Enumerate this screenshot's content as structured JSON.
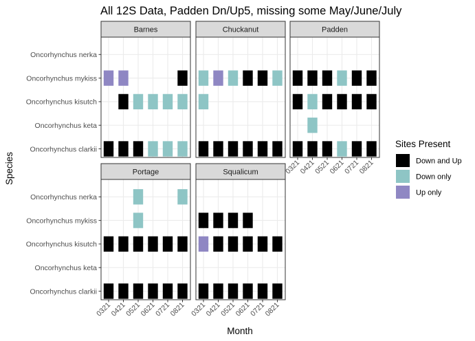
{
  "chart_data": {
    "type": "heatmap",
    "title": "All 12S Data, Padden Dn/Up5, missing some May/June/July",
    "xlabel": "Month",
    "ylabel": "Species",
    "x_categories": [
      "0321",
      "0421",
      "0521",
      "0621",
      "0721",
      "0821"
    ],
    "y_categories": [
      "Oncorhynchus clarkii",
      "Oncorhynchus keta",
      "Oncorhynchus kisutch",
      "Oncorhynchus mykiss",
      "Oncorhynchus nerka"
    ],
    "legend": {
      "title": "Sites Present",
      "placement": "right",
      "entries": [
        {
          "key": "Down and Up",
          "label": "Down and Up",
          "color": "#000000"
        },
        {
          "key": "Down only",
          "label": "Down only",
          "color": "#8ec5c5"
        },
        {
          "key": "Up only",
          "label": "Up only",
          "color": "#8f87c3"
        }
      ]
    },
    "grid": true,
    "facets": [
      {
        "name": "Barnes",
        "cells": [
          {
            "species": "Oncorhynchus mykiss",
            "month": "0321",
            "value": "Up only"
          },
          {
            "species": "Oncorhynchus mykiss",
            "month": "0421",
            "value": "Up only"
          },
          {
            "species": "Oncorhynchus mykiss",
            "month": "0821",
            "value": "Down and Up"
          },
          {
            "species": "Oncorhynchus kisutch",
            "month": "0421",
            "value": "Down and Up"
          },
          {
            "species": "Oncorhynchus kisutch",
            "month": "0521",
            "value": "Down only"
          },
          {
            "species": "Oncorhynchus kisutch",
            "month": "0621",
            "value": "Down only"
          },
          {
            "species": "Oncorhynchus kisutch",
            "month": "0721",
            "value": "Down only"
          },
          {
            "species": "Oncorhynchus kisutch",
            "month": "0821",
            "value": "Down only"
          },
          {
            "species": "Oncorhynchus clarkii",
            "month": "0321",
            "value": "Down and Up"
          },
          {
            "species": "Oncorhynchus clarkii",
            "month": "0421",
            "value": "Down and Up"
          },
          {
            "species": "Oncorhynchus clarkii",
            "month": "0521",
            "value": "Down and Up"
          },
          {
            "species": "Oncorhynchus clarkii",
            "month": "0621",
            "value": "Down only"
          },
          {
            "species": "Oncorhynchus clarkii",
            "month": "0721",
            "value": "Down only"
          },
          {
            "species": "Oncorhynchus clarkii",
            "month": "0821",
            "value": "Down only"
          }
        ]
      },
      {
        "name": "Chuckanut",
        "cells": [
          {
            "species": "Oncorhynchus mykiss",
            "month": "0321",
            "value": "Down only"
          },
          {
            "species": "Oncorhynchus mykiss",
            "month": "0421",
            "value": "Up only"
          },
          {
            "species": "Oncorhynchus mykiss",
            "month": "0521",
            "value": "Down only"
          },
          {
            "species": "Oncorhynchus mykiss",
            "month": "0621",
            "value": "Down and Up"
          },
          {
            "species": "Oncorhynchus mykiss",
            "month": "0721",
            "value": "Down and Up"
          },
          {
            "species": "Oncorhynchus mykiss",
            "month": "0821",
            "value": "Down only"
          },
          {
            "species": "Oncorhynchus kisutch",
            "month": "0321",
            "value": "Down only"
          },
          {
            "species": "Oncorhynchus clarkii",
            "month": "0321",
            "value": "Down and Up"
          },
          {
            "species": "Oncorhynchus clarkii",
            "month": "0421",
            "value": "Down and Up"
          },
          {
            "species": "Oncorhynchus clarkii",
            "month": "0521",
            "value": "Down and Up"
          },
          {
            "species": "Oncorhynchus clarkii",
            "month": "0621",
            "value": "Down and Up"
          },
          {
            "species": "Oncorhynchus clarkii",
            "month": "0721",
            "value": "Down and Up"
          },
          {
            "species": "Oncorhynchus clarkii",
            "month": "0821",
            "value": "Down and Up"
          }
        ]
      },
      {
        "name": "Padden",
        "cells": [
          {
            "species": "Oncorhynchus mykiss",
            "month": "0321",
            "value": "Down and Up"
          },
          {
            "species": "Oncorhynchus mykiss",
            "month": "0421",
            "value": "Down and Up"
          },
          {
            "species": "Oncorhynchus mykiss",
            "month": "0521",
            "value": "Down and Up"
          },
          {
            "species": "Oncorhynchus mykiss",
            "month": "0621",
            "value": "Down only"
          },
          {
            "species": "Oncorhynchus mykiss",
            "month": "0721",
            "value": "Down and Up"
          },
          {
            "species": "Oncorhynchus mykiss",
            "month": "0821",
            "value": "Down and Up"
          },
          {
            "species": "Oncorhynchus kisutch",
            "month": "0321",
            "value": "Down and Up"
          },
          {
            "species": "Oncorhynchus kisutch",
            "month": "0421",
            "value": "Down only"
          },
          {
            "species": "Oncorhynchus kisutch",
            "month": "0521",
            "value": "Down and Up"
          },
          {
            "species": "Oncorhynchus kisutch",
            "month": "0621",
            "value": "Down and Up"
          },
          {
            "species": "Oncorhynchus kisutch",
            "month": "0721",
            "value": "Down and Up"
          },
          {
            "species": "Oncorhynchus kisutch",
            "month": "0821",
            "value": "Down and Up"
          },
          {
            "species": "Oncorhynchus keta",
            "month": "0421",
            "value": "Down only"
          },
          {
            "species": "Oncorhynchus clarkii",
            "month": "0321",
            "value": "Down and Up"
          },
          {
            "species": "Oncorhynchus clarkii",
            "month": "0421",
            "value": "Down and Up"
          },
          {
            "species": "Oncorhynchus clarkii",
            "month": "0521",
            "value": "Down and Up"
          },
          {
            "species": "Oncorhynchus clarkii",
            "month": "0621",
            "value": "Down only"
          },
          {
            "species": "Oncorhynchus clarkii",
            "month": "0721",
            "value": "Down and Up"
          },
          {
            "species": "Oncorhynchus clarkii",
            "month": "0821",
            "value": "Down and Up"
          }
        ]
      },
      {
        "name": "Portage",
        "cells": [
          {
            "species": "Oncorhynchus nerka",
            "month": "0521",
            "value": "Down only"
          },
          {
            "species": "Oncorhynchus nerka",
            "month": "0821",
            "value": "Down only"
          },
          {
            "species": "Oncorhynchus mykiss",
            "month": "0521",
            "value": "Down only"
          },
          {
            "species": "Oncorhynchus kisutch",
            "month": "0321",
            "value": "Down and Up"
          },
          {
            "species": "Oncorhynchus kisutch",
            "month": "0421",
            "value": "Down and Up"
          },
          {
            "species": "Oncorhynchus kisutch",
            "month": "0521",
            "value": "Down and Up"
          },
          {
            "species": "Oncorhynchus kisutch",
            "month": "0621",
            "value": "Down and Up"
          },
          {
            "species": "Oncorhynchus kisutch",
            "month": "0721",
            "value": "Down and Up"
          },
          {
            "species": "Oncorhynchus kisutch",
            "month": "0821",
            "value": "Down and Up"
          },
          {
            "species": "Oncorhynchus clarkii",
            "month": "0321",
            "value": "Down and Up"
          },
          {
            "species": "Oncorhynchus clarkii",
            "month": "0421",
            "value": "Down and Up"
          },
          {
            "species": "Oncorhynchus clarkii",
            "month": "0521",
            "value": "Down and Up"
          },
          {
            "species": "Oncorhynchus clarkii",
            "month": "0621",
            "value": "Down and Up"
          },
          {
            "species": "Oncorhynchus clarkii",
            "month": "0721",
            "value": "Down and Up"
          },
          {
            "species": "Oncorhynchus clarkii",
            "month": "0821",
            "value": "Down and Up"
          }
        ]
      },
      {
        "name": "Squalicum",
        "cells": [
          {
            "species": "Oncorhynchus mykiss",
            "month": "0321",
            "value": "Down and Up"
          },
          {
            "species": "Oncorhynchus mykiss",
            "month": "0421",
            "value": "Down and Up"
          },
          {
            "species": "Oncorhynchus mykiss",
            "month": "0521",
            "value": "Down and Up"
          },
          {
            "species": "Oncorhynchus mykiss",
            "month": "0621",
            "value": "Down and Up"
          },
          {
            "species": "Oncorhynchus kisutch",
            "month": "0321",
            "value": "Up only"
          },
          {
            "species": "Oncorhynchus kisutch",
            "month": "0421",
            "value": "Down and Up"
          },
          {
            "species": "Oncorhynchus kisutch",
            "month": "0521",
            "value": "Down and Up"
          },
          {
            "species": "Oncorhynchus kisutch",
            "month": "0621",
            "value": "Down and Up"
          },
          {
            "species": "Oncorhynchus kisutch",
            "month": "0721",
            "value": "Down and Up"
          },
          {
            "species": "Oncorhynchus kisutch",
            "month": "0821",
            "value": "Down and Up"
          },
          {
            "species": "Oncorhynchus clarkii",
            "month": "0321",
            "value": "Down and Up"
          },
          {
            "species": "Oncorhynchus clarkii",
            "month": "0421",
            "value": "Down and Up"
          },
          {
            "species": "Oncorhynchus clarkii",
            "month": "0521",
            "value": "Down and Up"
          },
          {
            "species": "Oncorhynchus clarkii",
            "month": "0621",
            "value": "Down and Up"
          },
          {
            "species": "Oncorhynchus clarkii",
            "month": "0721",
            "value": "Down and Up"
          },
          {
            "species": "Oncorhynchus clarkii",
            "month": "0821",
            "value": "Down and Up"
          }
        ]
      }
    ]
  }
}
